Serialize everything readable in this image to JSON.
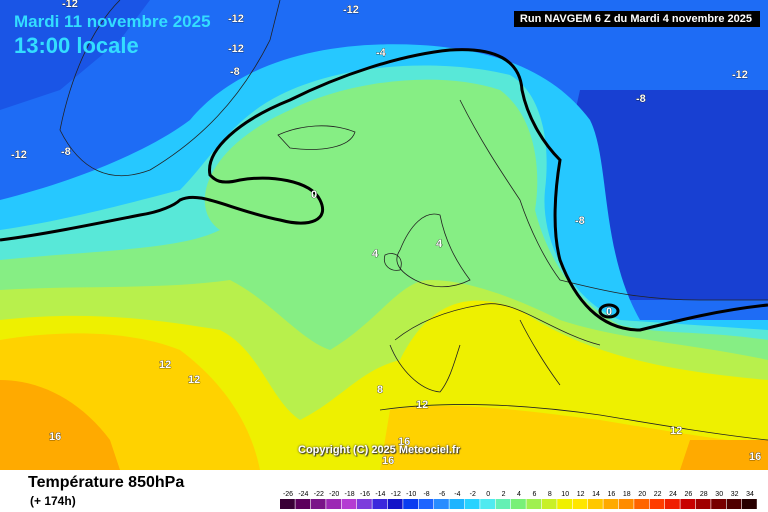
{
  "header": {
    "date": "Mardi 11 novembre 2025",
    "time": "13:00 locale",
    "run": "Run NAVGEM 6 Z du Mardi 4 novembre 2025"
  },
  "map": {
    "copyright": "Copyright (C) 2025 Meteociel.fr",
    "isotherm_labels": [
      "-12",
      "-12",
      "-12",
      "-12",
      "-8",
      "-4",
      "-12",
      "-8",
      "-12",
      "-8",
      "-8",
      "0",
      "4",
      "4",
      "0",
      "12",
      "12",
      "8",
      "12",
      "16",
      "16",
      "16",
      "12",
      "16"
    ]
  },
  "footer": {
    "parameter": "Température 850hPa",
    "forecast_step": "(+ 174h)"
  },
  "legend": {
    "ticks": [
      "-26",
      "-24",
      "-22",
      "-20",
      "-18",
      "-16",
      "-14",
      "-12",
      "-10",
      "-8",
      "-6",
      "-4",
      "-2",
      "0",
      "2",
      "4",
      "6",
      "8",
      "10",
      "12",
      "14",
      "16",
      "18",
      "20",
      "22",
      "24",
      "26",
      "28",
      "30",
      "32",
      "34"
    ],
    "colors": [
      "#3a0036",
      "#5c005c",
      "#7a1488",
      "#9c28b4",
      "#b43cd2",
      "#7c3cdc",
      "#3c28dc",
      "#1414c8",
      "#0a3cf0",
      "#1e64ff",
      "#288cff",
      "#1eb4ff",
      "#28d2ff",
      "#50eaf0",
      "#64f0b4",
      "#78f078",
      "#a0f050",
      "#c8f028",
      "#f0f000",
      "#ffe600",
      "#ffc800",
      "#ffaa00",
      "#ff8c00",
      "#ff6400",
      "#ff3c00",
      "#f01e00",
      "#c80000",
      "#a00000",
      "#780000",
      "#500000",
      "#280000"
    ]
  }
}
